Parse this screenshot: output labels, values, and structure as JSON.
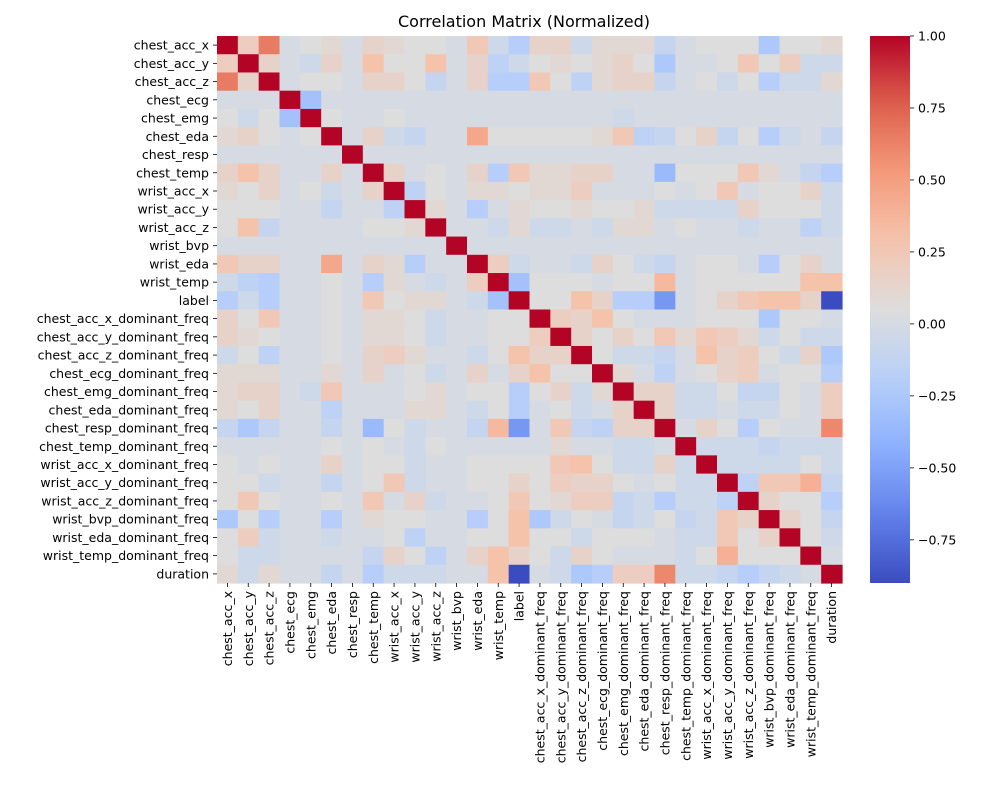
{
  "chart_data": {
    "type": "heatmap",
    "title": "Correlation Matrix (Normalized)",
    "variables": [
      "chest_acc_x",
      "chest_acc_y",
      "chest_acc_z",
      "chest_ecg",
      "chest_emg",
      "chest_eda",
      "chest_resp",
      "chest_temp",
      "wrist_acc_x",
      "wrist_acc_y",
      "wrist_acc_z",
      "wrist_bvp",
      "wrist_eda",
      "wrist_temp",
      "label",
      "chest_acc_x_dominant_freq",
      "chest_acc_y_dominant_freq",
      "chest_acc_z_dominant_freq",
      "chest_ecg_dominant_freq",
      "chest_emg_dominant_freq",
      "chest_eda_dominant_freq",
      "chest_resp_dominant_freq",
      "chest_temp_dominant_freq",
      "wrist_acc_x_dominant_freq",
      "wrist_acc_y_dominant_freq",
      "wrist_acc_z_dominant_freq",
      "wrist_bvp_dominant_freq",
      "wrist_eda_dominant_freq",
      "wrist_temp_dominant_freq",
      "duration"
    ],
    "matrix": [
      [
        1,
        0.2,
        0.65,
        0,
        0.05,
        0.1,
        0,
        0.15,
        0.1,
        0.05,
        0.05,
        0,
        0.25,
        -0.05,
        -0.2,
        0.15,
        0.15,
        -0.05,
        0.1,
        0.1,
        0.1,
        -0.1,
        0,
        0.05,
        0.05,
        0.05,
        -0.25,
        0.05,
        0.05,
        0.1
      ],
      [
        0.2,
        1,
        0.15,
        0,
        -0.05,
        0.15,
        0,
        0.3,
        0.05,
        0.05,
        0.3,
        0,
        0.15,
        -0.15,
        -0.05,
        0.05,
        0.1,
        0.05,
        0.1,
        0.15,
        0.05,
        -0.25,
        0,
        0,
        0.05,
        0.25,
        0.05,
        0.2,
        -0.05,
        -0.05
      ],
      [
        0.65,
        0.15,
        1,
        0,
        0.05,
        0.05,
        0,
        0.15,
        0.15,
        0.05,
        -0.1,
        0,
        0.15,
        -0.2,
        -0.2,
        0.25,
        0.05,
        -0.15,
        0.1,
        0.15,
        0.15,
        -0.1,
        0,
        0.05,
        -0.05,
        0.05,
        -0.2,
        -0.05,
        -0.05,
        0.1
      ],
      [
        0,
        0,
        0,
        1,
        -0.3,
        0,
        0,
        0,
        0,
        0,
        0,
        0,
        0,
        0,
        0,
        0,
        0,
        0,
        0,
        0,
        0,
        0,
        0,
        0,
        0,
        0,
        0,
        0,
        0,
        0
      ],
      [
        0.05,
        -0.05,
        0.05,
        -0.3,
        1,
        0.05,
        0,
        0,
        0.05,
        0,
        0,
        0,
        0,
        0,
        0,
        0,
        0,
        0,
        0,
        -0.05,
        0,
        0,
        0,
        0,
        0,
        0,
        0,
        0,
        0,
        0
      ],
      [
        0.1,
        0.15,
        0.05,
        0,
        0.05,
        1,
        0,
        0.15,
        -0.05,
        -0.1,
        0,
        0,
        0.45,
        0.05,
        0.05,
        0.05,
        0.05,
        0.05,
        0.1,
        0.25,
        -0.15,
        -0.1,
        0.05,
        0.15,
        -0.1,
        0.05,
        -0.2,
        -0.05,
        0,
        -0.1
      ],
      [
        0,
        0,
        0,
        0,
        0,
        0,
        1,
        0,
        0,
        0,
        0,
        0,
        0,
        0,
        0,
        0,
        0,
        0,
        0,
        0,
        0,
        0,
        0,
        0,
        0,
        0,
        0,
        0,
        0,
        0
      ],
      [
        0.15,
        0.3,
        0.15,
        0,
        0,
        0.15,
        0,
        1,
        0.15,
        0,
        0.05,
        0,
        0.15,
        -0.2,
        0.25,
        0.1,
        0.1,
        0.15,
        0.15,
        0,
        0,
        -0.35,
        0.05,
        0.05,
        0.05,
        0.25,
        0.1,
        0,
        -0.1,
        -0.2
      ],
      [
        0.1,
        0.05,
        0.15,
        0,
        0.05,
        -0.05,
        0,
        0.15,
        1,
        -0.15,
        0.05,
        0,
        0.1,
        0.1,
        0.05,
        0.1,
        0.1,
        0.2,
        0,
        0,
        0,
        0.05,
        0,
        0.05,
        0.25,
        0,
        0.05,
        0.05,
        0.15,
        -0.05
      ],
      [
        0.05,
        0.05,
        0.05,
        0,
        0,
        -0.1,
        0,
        0,
        -0.15,
        1,
        0.1,
        0,
        -0.2,
        0,
        0.1,
        0.05,
        0.05,
        0.1,
        0.05,
        0.05,
        0.1,
        -0.05,
        -0.05,
        -0.05,
        -0.05,
        0.15,
        0.05,
        0.05,
        0.05,
        -0.05
      ],
      [
        0.05,
        0.3,
        -0.1,
        0,
        0,
        0,
        0,
        0.05,
        0.05,
        0.1,
        1,
        0,
        0,
        -0.05,
        0.1,
        -0.05,
        -0.05,
        0,
        -0.05,
        0.1,
        0.1,
        0,
        0.05,
        0,
        0,
        -0.05,
        0,
        0,
        -0.15,
        -0.05
      ],
      [
        0,
        0,
        0,
        0,
        0,
        0,
        0,
        0,
        0,
        0,
        0,
        1,
        0,
        0,
        0,
        0,
        0,
        0,
        0,
        0,
        0,
        0,
        0,
        0,
        0,
        0,
        0,
        0,
        0,
        0
      ],
      [
        0.25,
        0.15,
        0.15,
        0,
        0,
        0.45,
        0,
        0.15,
        0.1,
        -0.2,
        0,
        0,
        1,
        0.2,
        -0.05,
        0,
        0,
        -0.05,
        0.15,
        0.05,
        -0.05,
        -0.1,
        0,
        0.05,
        0.05,
        0,
        -0.2,
        0.05,
        0.15,
        0
      ],
      [
        -0.05,
        -0.15,
        -0.2,
        0,
        0,
        0.05,
        0,
        -0.2,
        0.1,
        0,
        -0.05,
        0,
        0.2,
        1,
        -0.3,
        0.05,
        0.05,
        0.05,
        0,
        0.05,
        0.05,
        0.35,
        0,
        0.05,
        0.05,
        0.05,
        0.05,
        0.05,
        0.3,
        0.3
      ],
      [
        -0.2,
        -0.05,
        -0.2,
        0,
        0,
        0.05,
        0,
        0.25,
        0.05,
        0.1,
        0.1,
        0,
        -0.05,
        -0.3,
        1,
        0.05,
        0.05,
        0.3,
        0.15,
        -0.2,
        -0.2,
        -0.55,
        0,
        0.05,
        0.15,
        0.25,
        0.3,
        0.3,
        0.15,
        -0.9
      ],
      [
        0.15,
        0.05,
        0.25,
        0,
        0,
        0.05,
        0,
        0.1,
        0.1,
        0.05,
        -0.05,
        0,
        0,
        0.05,
        0.05,
        1,
        0.2,
        0.15,
        0.3,
        0.05,
        0,
        0,
        0,
        0.05,
        0.05,
        0.05,
        -0.25,
        0.05,
        0.05,
        0
      ],
      [
        0.15,
        0.1,
        0.05,
        0,
        0,
        0.05,
        0,
        0.1,
        0.1,
        0.05,
        -0.05,
        0,
        0,
        0.05,
        0.05,
        0.2,
        1,
        0.15,
        0.05,
        0.15,
        0.05,
        0.25,
        0.1,
        0.25,
        0.2,
        0.1,
        -0.05,
        0.05,
        -0.05,
        -0.05
      ],
      [
        -0.05,
        0.05,
        -0.15,
        0,
        0,
        0.05,
        0,
        0.15,
        0.2,
        0.1,
        0,
        0,
        -0.05,
        0.05,
        0.3,
        0.15,
        0.15,
        1,
        0.05,
        -0.05,
        -0.05,
        -0.1,
        0,
        0.3,
        0.15,
        0.2,
        0.05,
        -0.05,
        0.15,
        -0.25
      ],
      [
        0.1,
        0.1,
        0.1,
        0,
        0,
        0.1,
        0,
        0.15,
        0,
        0.05,
        -0.05,
        0,
        0.15,
        0,
        0.15,
        0.3,
        0.05,
        0.05,
        1,
        0.1,
        0,
        -0.15,
        0,
        0.05,
        0.15,
        0.2,
        0,
        0.05,
        0.05,
        -0.2
      ],
      [
        0.1,
        0.15,
        0.15,
        0,
        -0.05,
        0.25,
        0,
        0,
        0,
        0.05,
        0.1,
        0,
        0.05,
        0.05,
        -0.2,
        0.05,
        0.15,
        -0.05,
        0.1,
        1,
        0.15,
        0.15,
        -0.05,
        -0.05,
        0.05,
        -0.1,
        -0.1,
        0.05,
        0,
        0.2
      ],
      [
        0.1,
        0.05,
        0.15,
        0,
        0,
        -0.15,
        0,
        0,
        0,
        0.1,
        0.1,
        0,
        -0.05,
        0.05,
        -0.2,
        0,
        0.05,
        -0.05,
        0,
        0.15,
        1,
        0.15,
        -0.05,
        -0.05,
        0,
        -0.05,
        -0.05,
        0.05,
        0,
        0.2
      ],
      [
        -0.1,
        -0.25,
        -0.1,
        0,
        0,
        -0.1,
        0,
        -0.35,
        0.05,
        -0.05,
        0,
        0,
        -0.1,
        0.35,
        -0.55,
        0,
        0.25,
        -0.1,
        -0.15,
        0.15,
        0.15,
        1,
        0,
        0.15,
        0.05,
        -0.2,
        0.05,
        0,
        0,
        0.6
      ],
      [
        0,
        0,
        0,
        0,
        0,
        0.05,
        0,
        0.05,
        0,
        -0.05,
        0.05,
        0,
        0,
        0,
        0,
        0,
        0.1,
        0,
        0,
        -0.05,
        -0.05,
        0,
        1,
        -0.05,
        -0.05,
        -0.05,
        -0.1,
        -0.05,
        -0.05,
        -0.05
      ],
      [
        0.05,
        0,
        0.05,
        0,
        0,
        0.15,
        0,
        0.05,
        0.05,
        -0.05,
        0,
        0,
        0.05,
        0.05,
        0.05,
        0.05,
        0.25,
        0.3,
        0.05,
        -0.05,
        -0.05,
        0.15,
        -0.05,
        1,
        -0.05,
        -0.05,
        -0.05,
        -0.05,
        0.05,
        -0.05
      ],
      [
        0.05,
        0.05,
        -0.05,
        0,
        0,
        -0.1,
        0,
        0.05,
        0.25,
        -0.05,
        0,
        0,
        0.05,
        0.05,
        0.15,
        0.05,
        0.2,
        0.15,
        0.15,
        0.05,
        0,
        0.05,
        -0.05,
        -0.05,
        1,
        -0.15,
        0.25,
        0.25,
        0.4,
        -0.1
      ],
      [
        0.05,
        0.25,
        0.05,
        0,
        0,
        0.05,
        0,
        0.25,
        0,
        0.15,
        -0.05,
        0,
        0,
        0.05,
        0.25,
        0.05,
        0.1,
        0.2,
        0.2,
        -0.1,
        -0.05,
        -0.2,
        -0.05,
        -0.05,
        -0.15,
        1,
        0.15,
        0.05,
        0.05,
        -0.2
      ],
      [
        -0.25,
        0.05,
        -0.2,
        0,
        0,
        -0.2,
        0,
        0.1,
        0.05,
        0.05,
        0,
        0,
        -0.2,
        0.05,
        0.3,
        -0.25,
        -0.05,
        0.05,
        0,
        -0.1,
        -0.05,
        0.05,
        -0.1,
        -0.05,
        0.25,
        0.15,
        1,
        0.15,
        0.05,
        -0.1
      ],
      [
        0.05,
        0.2,
        -0.05,
        0,
        0,
        -0.05,
        0,
        0,
        0.05,
        -0.15,
        0,
        0,
        0.05,
        0.05,
        0.3,
        0.05,
        0.05,
        -0.05,
        0.05,
        0.05,
        0.05,
        0,
        -0.05,
        -0.05,
        0.25,
        0.05,
        0.15,
        1,
        0.05,
        -0.05
      ],
      [
        0.05,
        -0.05,
        -0.05,
        0,
        0,
        0,
        0,
        -0.1,
        0.15,
        0.05,
        -0.15,
        0,
        0.15,
        0.3,
        0.15,
        0.05,
        -0.05,
        0.15,
        0.05,
        0,
        0,
        0,
        -0.05,
        0.05,
        0.4,
        0.05,
        0.05,
        0.05,
        1,
        0
      ],
      [
        0.1,
        -0.05,
        0.1,
        0,
        0,
        -0.1,
        0,
        -0.2,
        -0.05,
        -0.05,
        -0.05,
        0,
        0,
        0.3,
        -0.9,
        0,
        -0.05,
        -0.25,
        -0.2,
        0.2,
        0.2,
        0.6,
        -0.05,
        -0.05,
        -0.1,
        -0.2,
        -0.1,
        -0.05,
        0,
        1
      ]
    ],
    "colorbar": {
      "colormap": "coolwarm",
      "range": [
        -0.9,
        1.0
      ],
      "ticks": [
        1.0,
        0.75,
        0.5,
        0.25,
        0.0,
        -0.25,
        -0.5,
        -0.75
      ],
      "tick_labels": [
        "1.00",
        "0.75",
        "0.50",
        "0.25",
        "0.00",
        "−0.25",
        "−0.50",
        "−0.75"
      ]
    }
  }
}
